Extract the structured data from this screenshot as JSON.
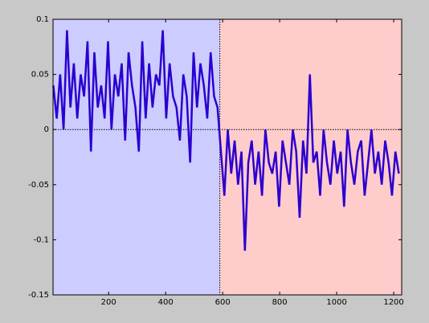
{
  "chart_data": {
    "type": "line",
    "x": [
      6,
      18,
      30,
      42,
      54,
      66,
      78,
      90,
      102,
      114,
      126,
      138,
      150,
      162,
      174,
      186,
      198,
      210,
      222,
      234,
      246,
      258,
      270,
      282,
      294,
      306,
      318,
      330,
      342,
      354,
      366,
      378,
      390,
      402,
      414,
      426,
      438,
      450,
      462,
      474,
      486,
      498,
      510,
      522,
      534,
      546,
      558,
      570,
      582,
      594,
      606,
      618,
      630,
      642,
      654,
      666,
      678,
      690,
      702,
      714,
      726,
      738,
      750,
      762,
      774,
      786,
      798,
      810,
      822,
      834,
      846,
      858,
      870,
      882,
      894,
      906,
      918,
      930,
      942,
      954,
      966,
      978,
      990,
      1002,
      1014,
      1026,
      1038,
      1050,
      1062,
      1074,
      1086,
      1098,
      1110,
      1122,
      1134,
      1146,
      1158,
      1170,
      1182,
      1194,
      1206,
      1218
    ],
    "values": [
      0.04,
      0.01,
      0.05,
      0.0,
      0.09,
      0.02,
      0.06,
      0.01,
      0.05,
      0.03,
      0.08,
      -0.02,
      0.07,
      0.02,
      0.04,
      0.01,
      0.08,
      0.0,
      0.05,
      0.03,
      0.06,
      -0.01,
      0.07,
      0.04,
      0.02,
      -0.02,
      0.08,
      0.01,
      0.06,
      0.02,
      0.05,
      0.04,
      0.09,
      0.01,
      0.06,
      0.03,
      0.02,
      -0.01,
      0.05,
      0.03,
      -0.03,
      0.07,
      0.02,
      0.06,
      0.04,
      0.01,
      0.07,
      0.03,
      0.02,
      -0.02,
      -0.06,
      0.0,
      -0.04,
      -0.01,
      -0.05,
      -0.02,
      -0.11,
      -0.03,
      -0.01,
      -0.05,
      -0.02,
      -0.06,
      0.0,
      -0.03,
      -0.04,
      -0.02,
      -0.07,
      -0.01,
      -0.03,
      -0.05,
      0.0,
      -0.02,
      -0.08,
      -0.01,
      -0.04,
      0.05,
      -0.03,
      -0.02,
      -0.06,
      0.0,
      -0.03,
      -0.05,
      -0.01,
      -0.04,
      -0.02,
      -0.07,
      0.0,
      -0.03,
      -0.05,
      -0.02,
      -0.01,
      -0.06,
      -0.03,
      0.0,
      -0.04,
      -0.02,
      -0.05,
      -0.01,
      -0.03,
      -0.06,
      -0.02,
      -0.04
    ],
    "color": "#2a00d0",
    "xlim": [
      5,
      1228
    ],
    "ylim": [
      -0.15,
      0.1
    ],
    "xticks": [
      200,
      400,
      600,
      800,
      1000,
      1200
    ],
    "yticks": [
      -0.15,
      -0.1,
      -0.05,
      0,
      0.05,
      0.1
    ],
    "regions": [
      {
        "start": 5,
        "end": 590,
        "color": "#ccccff"
      },
      {
        "start": 590,
        "end": 1228,
        "color": "#ffcccc"
      }
    ],
    "hlines": [
      0
    ],
    "vlines": [
      590
    ]
  }
}
